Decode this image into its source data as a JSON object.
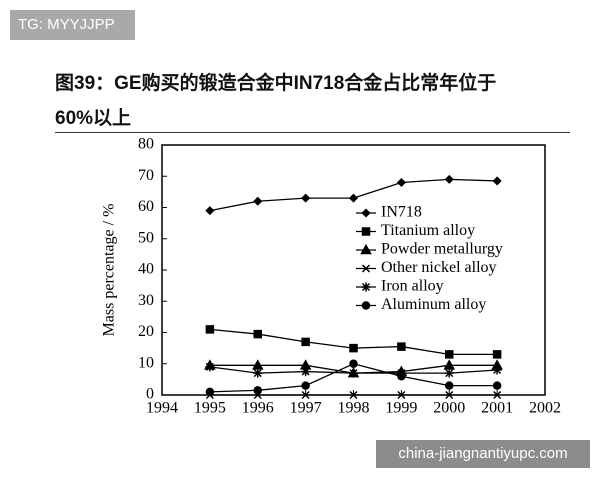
{
  "badge": "TG: MYYJJPP",
  "title_lines": [
    "图39：GE购买的锻造合金中IN718合金占比常年位于",
    "60%以上"
  ],
  "watermark": "china-jiangnantiyupc.com",
  "chart_data": {
    "type": "line",
    "y_label": "Mass percentage / %",
    "x": [
      1995,
      1996,
      1997,
      1998,
      1999,
      2000,
      2001
    ],
    "xlim": [
      1994,
      2002
    ],
    "xticks": [
      1994,
      1995,
      1996,
      1997,
      1998,
      1999,
      2000,
      2001,
      2002
    ],
    "ylim": [
      0,
      80
    ],
    "yticks": [
      0,
      10,
      20,
      30,
      40,
      50,
      60,
      70,
      80
    ],
    "series": [
      {
        "name": "IN718",
        "color": "#000000",
        "marker": "diamond",
        "values": [
          59,
          62,
          63,
          63,
          68,
          69,
          68.5
        ]
      },
      {
        "name": "Titanium alloy",
        "color": "#000000",
        "marker": "square",
        "values": [
          21,
          19.5,
          17,
          15,
          15.5,
          13,
          13
        ]
      },
      {
        "name": "Powder metallurgy",
        "color": "#000000",
        "marker": "triangle",
        "values": [
          9.5,
          9.5,
          9.5,
          7,
          7.5,
          9.5,
          9.5
        ]
      },
      {
        "name": "Other nickel alloy",
        "color": "#000000",
        "marker": "x",
        "values": [
          0,
          0,
          0,
          0,
          0,
          0,
          0
        ]
      },
      {
        "name": "Iron alloy",
        "color": "#000000",
        "marker": "star",
        "values": [
          9,
          7,
          7.5,
          7,
          7,
          7,
          8
        ]
      },
      {
        "name": "Aluminum alloy",
        "color": "#000000",
        "marker": "circle",
        "values": [
          1,
          1.5,
          3,
          10,
          6,
          3,
          3
        ]
      }
    ]
  }
}
